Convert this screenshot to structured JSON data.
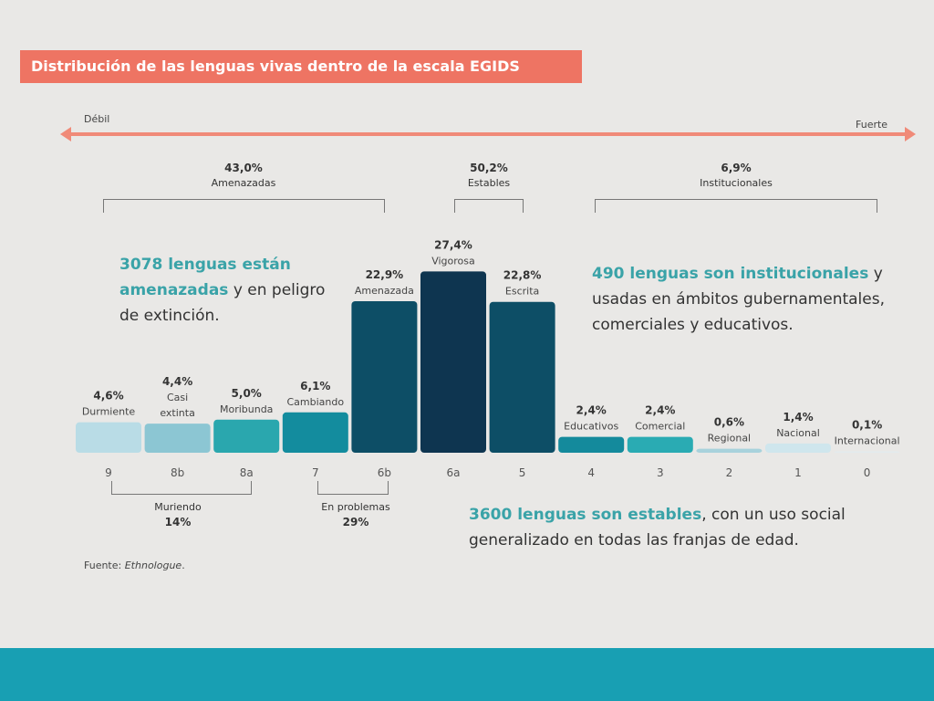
{
  "title": "Distribución de las lenguas vivas dentro de la escala EGIDS",
  "axis": {
    "left": "Débil",
    "right": "Fuerte"
  },
  "groups_top": [
    {
      "pct": "43,0%",
      "label": "Amenazadas"
    },
    {
      "pct": "50,2%",
      "label": "Estables"
    },
    {
      "pct": "6,9%",
      "label": "Institucionales"
    }
  ],
  "groups_bottom": [
    {
      "label": "Muriendo",
      "pct": "14%"
    },
    {
      "label": "En problemas",
      "pct": "29%"
    }
  ],
  "notes": {
    "amenazadas": {
      "hl": "3078 lenguas están amenazadas",
      "rest": " y en peligro de extinción."
    },
    "institucionales": {
      "hl": "490 lenguas son institucionales",
      "rest": " y usadas en ámbitos gubernamentales, comerciales y educativos."
    },
    "estables": {
      "hl": "3600 lenguas son estables",
      "rest": ", con un uso social generalizado en todas las franjas de edad."
    }
  },
  "source": {
    "prefix": "Fuente: ",
    "name": "Ethnologue",
    "suffix": "."
  },
  "chart_data": {
    "type": "bar",
    "categories": [
      "9",
      "8b",
      "8a",
      "7",
      "6b",
      "6a",
      "5",
      "4",
      "3",
      "2",
      "1",
      "0"
    ],
    "labels": [
      "Durmiente",
      "Casi extinta",
      "Moribunda",
      "Cambiando",
      "Amenazada",
      "Vigorosa",
      "Escrita",
      "Educativos",
      "Comercial",
      "Regional",
      "Nacional",
      "Internacional"
    ],
    "values": [
      4.6,
      4.4,
      5.0,
      6.1,
      22.9,
      27.4,
      22.8,
      2.4,
      2.4,
      0.6,
      1.4,
      0.1
    ],
    "value_labels": [
      "4,6%",
      "4,4%",
      "5,0%",
      "6,1%",
      "22,9%",
      "27,4%",
      "22,8%",
      "2,4%",
      "2,4%",
      "0,6%",
      "1,4%",
      "0,1%"
    ],
    "colors": [
      "#b9dce6",
      "#8cc6d3",
      "#2aa7ae",
      "#138c9e",
      "#0d4e66",
      "#0e3550",
      "#0d4e66",
      "#148a9c",
      "#2aabb3",
      "#a8d2dc",
      "#cfe6ed",
      "#e3ebee"
    ]
  }
}
